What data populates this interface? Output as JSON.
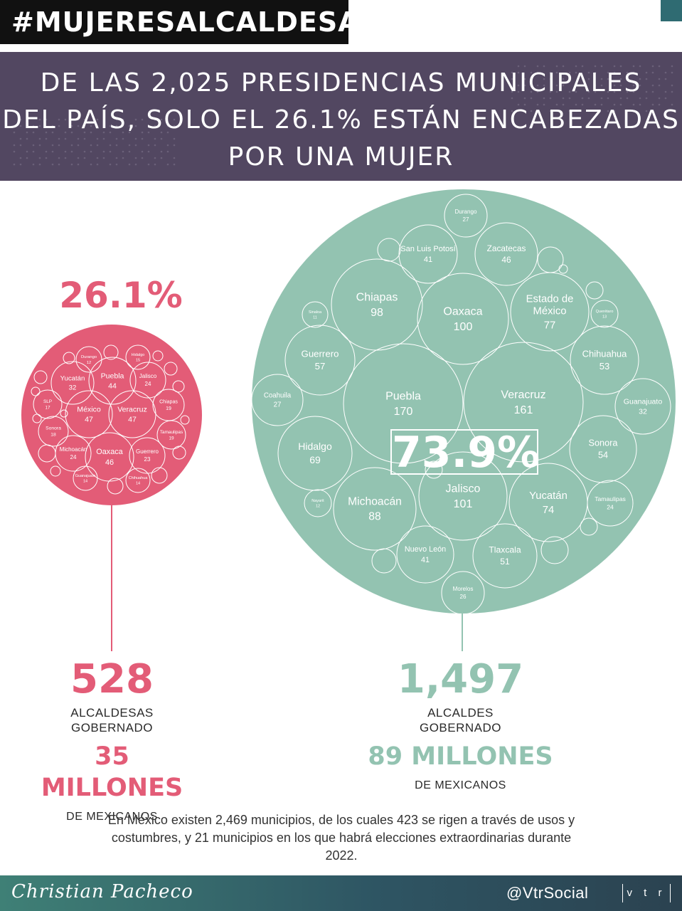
{
  "hashtag": "#MUJERESALCALDESAS",
  "banner": {
    "line1": "DE LAS 2,025 PRESIDENCIAS MUNICIPALES",
    "line2": "DEL PAÍS, SOLO EL 26.1% ESTÁN ENCABEZADAS",
    "line3": "POR UNA MUJER"
  },
  "colors": {
    "women": "#e35c77",
    "men": "#93c3b1",
    "banner": "#524761"
  },
  "chart_data": [
    {
      "type": "bubble",
      "group": "women",
      "percent_label": "26.1%",
      "series": [
        {
          "label": "Durango",
          "value": 12
        },
        {
          "label": "Hidalgo",
          "value": 15
        },
        {
          "label": "Yucatán",
          "value": 32
        },
        {
          "label": "Puebla",
          "value": 44
        },
        {
          "label": "Jalisco",
          "value": 24
        },
        {
          "label": "SLP",
          "value": 17
        },
        {
          "label": "México",
          "value": 47
        },
        {
          "label": "Veracruz",
          "value": 47
        },
        {
          "label": "Chiapas",
          "value": 19
        },
        {
          "label": "Sonora",
          "value": 18
        },
        {
          "label": "Tamaulipas",
          "value": 19
        },
        {
          "label": "Michoacán",
          "value": 24
        },
        {
          "label": "Oaxaca",
          "value": 46
        },
        {
          "label": "Guerrero",
          "value": 23
        },
        {
          "label": "Guanajuato",
          "value": 14
        },
        {
          "label": "Chihuahua",
          "value": 14
        }
      ]
    },
    {
      "type": "bubble",
      "group": "men",
      "percent_label": "73.9%",
      "series": [
        {
          "label": "Durango",
          "value": 27
        },
        {
          "label": "San Luis Potosí",
          "value": 41
        },
        {
          "label": "Zacatecas",
          "value": 46
        },
        {
          "label": "Chiapas",
          "value": 98
        },
        {
          "label": "Oaxaca",
          "value": 100
        },
        {
          "label": "Estado de México",
          "value": 77
        },
        {
          "label": "Querétaro",
          "value": 13
        },
        {
          "label": "Sinaloa",
          "value": 11
        },
        {
          "label": "Guerrero",
          "value": 57
        },
        {
          "label": "Chihuahua",
          "value": 53
        },
        {
          "label": "Coahuila",
          "value": 27
        },
        {
          "label": "Puebla",
          "value": 170
        },
        {
          "label": "Veracruz",
          "value": 161
        },
        {
          "label": "Guanajuato",
          "value": 32
        },
        {
          "label": "Hidalgo",
          "value": 69
        },
        {
          "label": "Sonora",
          "value": 54
        },
        {
          "label": "Nayarit",
          "value": 12
        },
        {
          "label": "Michoacán",
          "value": 88
        },
        {
          "label": "Jalisco",
          "value": 101
        },
        {
          "label": "Yucatán",
          "value": 74
        },
        {
          "label": "Tamaulipas",
          "value": 24
        },
        {
          "label": "Nuevo León",
          "value": 41
        },
        {
          "label": "Tlaxcala",
          "value": 51
        },
        {
          "label": "Morelos",
          "value": 26
        }
      ]
    }
  ],
  "stats": {
    "women": {
      "count": "528",
      "label1": "ALCALDESAS",
      "label2": "GOBERNADO",
      "population": "35 MILLONES",
      "population_label": "DE MEXICANOS"
    },
    "men": {
      "count": "1,497",
      "label1": "ALCALDES",
      "label2": "GOBERNADO",
      "population": "89 MILLONES",
      "population_label": "DE MEXICANOS"
    }
  },
  "footnote": "En México existen 2,469 municipios, de los cuales 423 se rigen a través de usos y costumbres, y 21 municipios en los que habrá elecciones extraordinarias durante 2022.",
  "footer": {
    "author": "Christian Pacheco",
    "handle": "@VtrSocial",
    "logo": "v t r"
  }
}
